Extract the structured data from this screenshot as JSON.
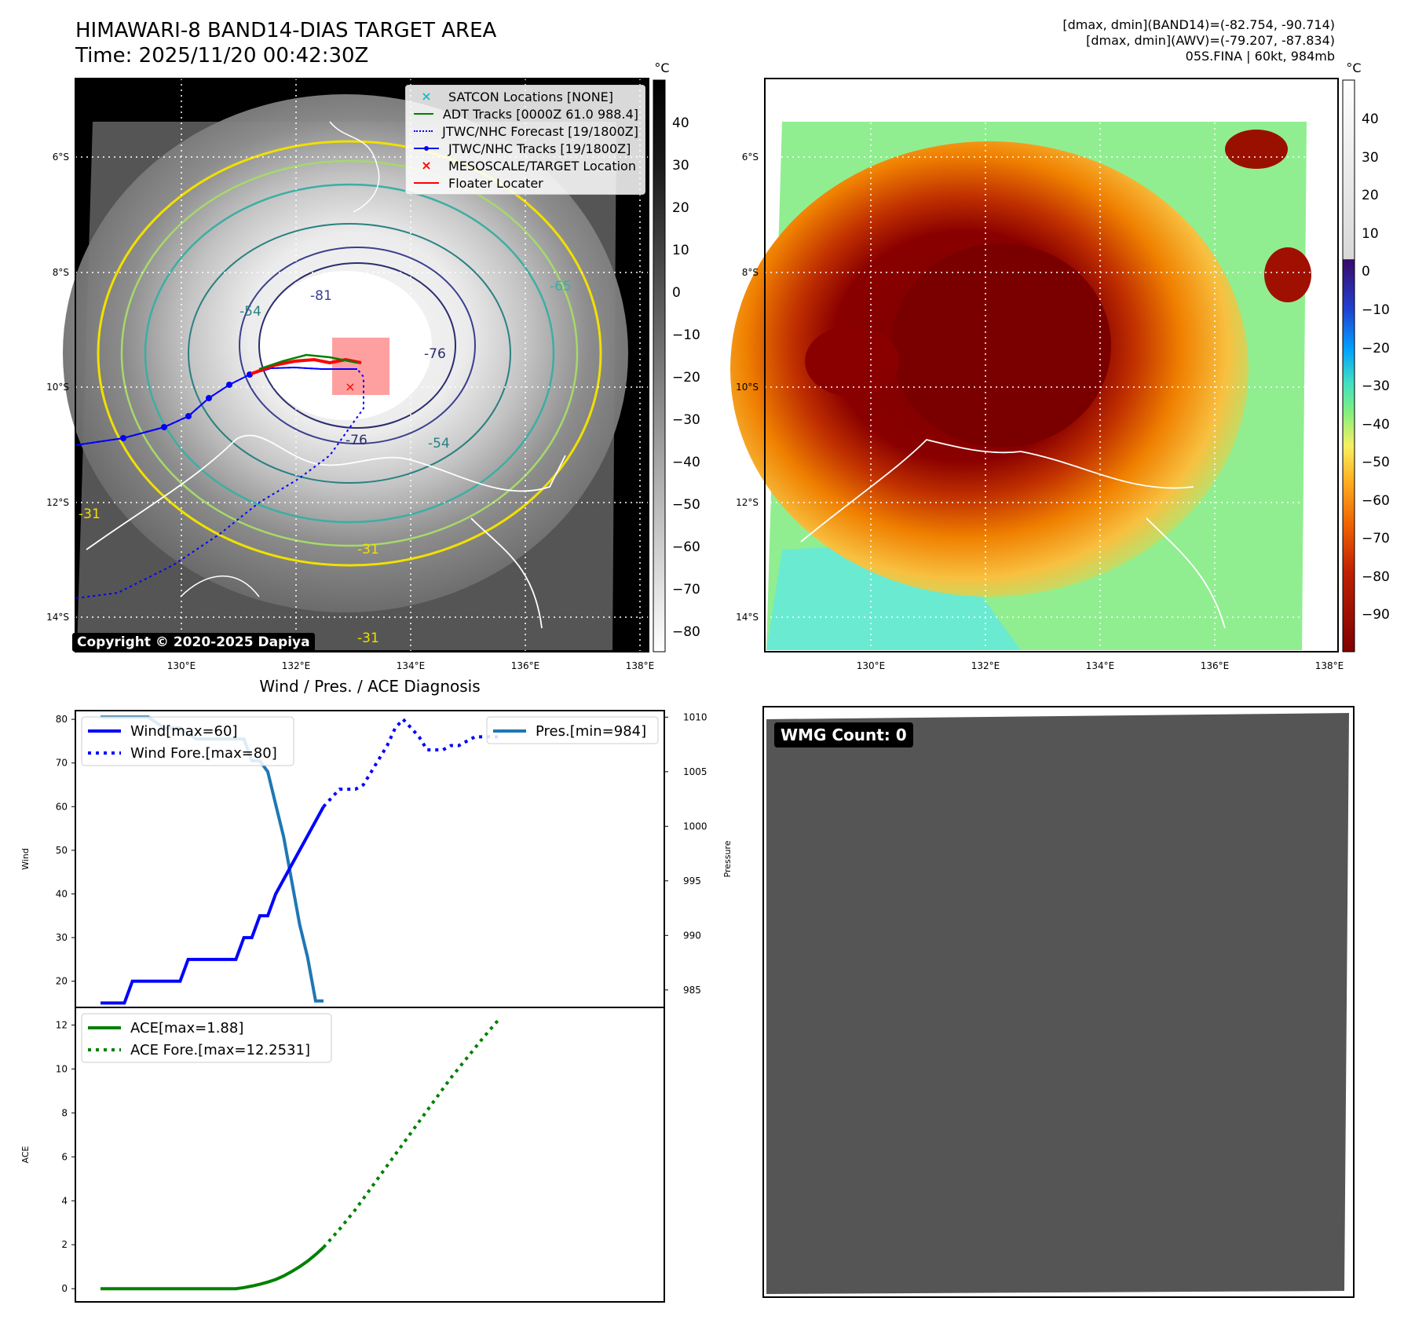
{
  "header": {
    "title_line1": "HIMAWARI-8 BAND14-DIAS TARGET AREA",
    "title_line2": "Time: 2025/11/20 00:42:30Z",
    "info_line1": "[dmax, dmin](BAND14)=(-82.754, -90.714)",
    "info_line2": "[dmax, dmin](AWV)=(-79.207, -87.834)",
    "info_line3": "05S.FINA | 60kt, 984mb"
  },
  "map_axes": {
    "lat_labels": [
      "6°S",
      "8°S",
      "10°S",
      "12°S",
      "14°S"
    ],
    "lon_labels": [
      "130°E",
      "132°E",
      "134°E",
      "136°E",
      "138°E"
    ],
    "contour_labels": [
      "-81",
      "-54",
      "-76",
      "-76",
      "-31",
      "-31",
      "-31",
      "-65",
      "-54"
    ]
  },
  "left_map": {
    "legend": [
      {
        "label": "SATCON Locations [NONE]",
        "color": "#17becf",
        "style": "x-marker"
      },
      {
        "label": "ADT Tracks [0000Z 61.0 988.4]",
        "color": "#008000",
        "style": "solid"
      },
      {
        "label": "JTWC/NHC Forecast [19/1800Z]",
        "color": "#0000ff",
        "style": "dotted"
      },
      {
        "label": "JTWC/NHC Tracks [19/1800Z]",
        "color": "#0000ff",
        "style": "dot-line"
      },
      {
        "label": "MESOSCALE/TARGET Location",
        "color": "#ff0000",
        "style": "x-marker"
      },
      {
        "label": "Floater Locater",
        "color": "#ff0000",
        "style": "solid"
      }
    ],
    "copyright": "Copyright © 2020-2025 Dapiya",
    "colorbar": {
      "unit": "°C",
      "ticks": [
        "40",
        "30",
        "20",
        "10",
        "0",
        "−10",
        "−20",
        "−30",
        "−40",
        "−50",
        "−60",
        "−70",
        "−80"
      ]
    }
  },
  "right_map": {
    "colorbar": {
      "unit": "°C",
      "ticks": [
        "40",
        "30",
        "20",
        "10",
        "0",
        "−10",
        "−20",
        "−30",
        "−40",
        "−50",
        "−60",
        "−70",
        "−80",
        "−90"
      ]
    }
  },
  "wmg_panel": {
    "label": "WMG Count: 0",
    "background": "#555555"
  },
  "chart_data": [
    {
      "type": "line",
      "title": "Wind / Pres. / ACE Diagnosis",
      "ylabel": "Wind",
      "y2label": "Pressure",
      "ylim": [
        14,
        82
      ],
      "y2lim": [
        983.4,
        1010.6
      ],
      "yticks": [
        "80",
        "70",
        "60",
        "50",
        "40",
        "30",
        "20"
      ],
      "y2ticks": [
        "1010",
        "1005",
        "1000",
        "995",
        "990",
        "985"
      ],
      "series": [
        {
          "name": "Wind[max=60]",
          "color": "#0000ff",
          "style": "solid",
          "x": [
            0,
            3,
            4,
            6,
            10,
            11,
            17,
            18,
            19,
            20,
            21,
            22,
            28
          ],
          "values": [
            15,
            15,
            20,
            20,
            20,
            25,
            25,
            30,
            30,
            35,
            35,
            40,
            60
          ]
        },
        {
          "name": "Wind Fore.[max=80]",
          "color": "#0000ff",
          "style": "dotted",
          "x": [
            28,
            29,
            30,
            31,
            32,
            33,
            34,
            35,
            36,
            37,
            38,
            39,
            40,
            41,
            42,
            43,
            44,
            45,
            46,
            47,
            48,
            49,
            50
          ],
          "values": [
            60,
            62,
            64,
            64,
            64,
            65,
            68,
            71,
            74,
            78,
            80,
            78,
            76,
            73,
            73,
            73,
            74,
            74,
            75,
            76,
            76,
            76,
            76
          ]
        }
      ],
      "series_right": [
        {
          "name": "Pres.[min=984]",
          "color": "#1f77b4",
          "style": "solid",
          "x": [
            0,
            6,
            8,
            10,
            12,
            14,
            16,
            18,
            19,
            20,
            21,
            22,
            23,
            25,
            26,
            27,
            28
          ],
          "values": [
            1010,
            1010,
            1009,
            1009,
            1008,
            1008,
            1008,
            1008,
            1006,
            1006,
            1005,
            1002,
            999,
            991,
            988,
            984,
            984
          ]
        }
      ]
    },
    {
      "type": "line",
      "ylabel": "ACE",
      "ylim": [
        -0.6,
        12.8
      ],
      "yticks": [
        "12",
        "10",
        "8",
        "6",
        "4",
        "2",
        "0"
      ],
      "series": [
        {
          "name": "ACE[max=1.88]",
          "color": "#008000",
          "style": "solid",
          "x": [
            0,
            10,
            17,
            18,
            19,
            20,
            21,
            22,
            23,
            24,
            25,
            26,
            27,
            28
          ],
          "values": [
            0,
            0,
            0,
            0.05,
            0.12,
            0.2,
            0.3,
            0.42,
            0.58,
            0.78,
            1.0,
            1.25,
            1.55,
            1.88
          ]
        },
        {
          "name": "ACE Fore.[max=12.2531]",
          "color": "#008000",
          "style": "dotted",
          "x": [
            28,
            30,
            32,
            34,
            36,
            38,
            40,
            42,
            44,
            46,
            48,
            50
          ],
          "values": [
            1.88,
            2.7,
            3.6,
            4.6,
            5.6,
            6.6,
            7.6,
            8.6,
            9.6,
            10.5,
            11.4,
            12.25
          ]
        }
      ]
    }
  ]
}
